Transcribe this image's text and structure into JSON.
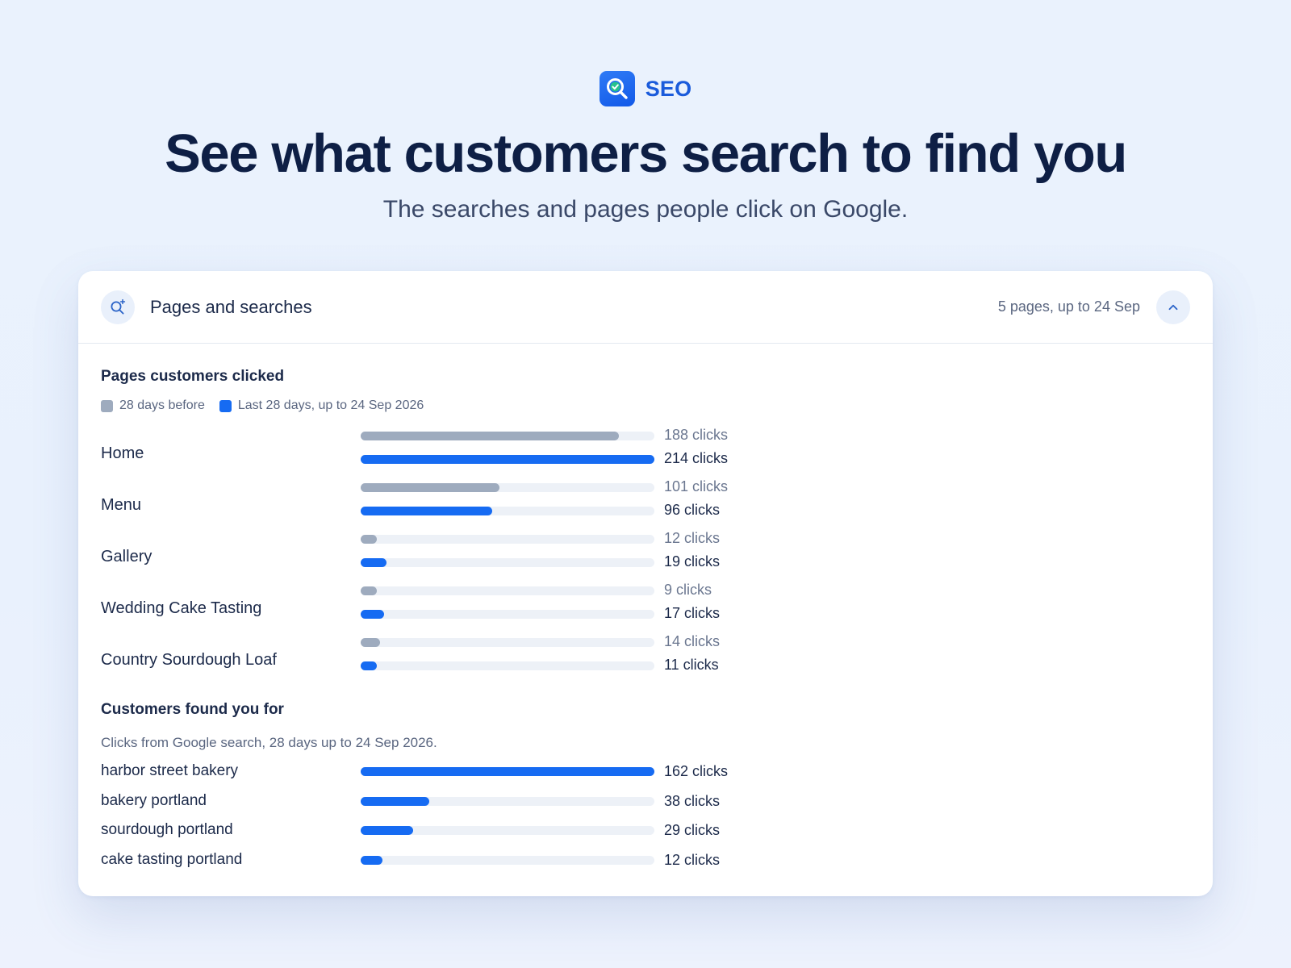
{
  "brand": {
    "name": "SEO"
  },
  "hero": {
    "title": "See what customers search to find you",
    "subtitle": "The searches and pages people click on Google."
  },
  "card": {
    "title": "Pages and searches",
    "meta": "5 pages, up to 24 Sep"
  },
  "pages_section": {
    "title": "Pages customers clicked",
    "legend": {
      "previous": "28 days before",
      "current": "Last 28 days, up to 24 Sep 2026"
    },
    "rows": [
      {
        "label": "Home",
        "previous": 188,
        "previous_text": "188 clicks",
        "current": 214,
        "current_text": "214 clicks"
      },
      {
        "label": "Menu",
        "previous": 101,
        "previous_text": "101 clicks",
        "current": 96,
        "current_text": "96 clicks"
      },
      {
        "label": "Gallery",
        "previous": 12,
        "previous_text": "12 clicks",
        "current": 19,
        "current_text": "19 clicks"
      },
      {
        "label": "Wedding Cake Tasting",
        "previous": 9,
        "previous_text": "9 clicks",
        "current": 17,
        "current_text": "17 clicks"
      },
      {
        "label": "Country Sourdough Loaf",
        "previous": 14,
        "previous_text": "14 clicks",
        "current": 11,
        "current_text": "11 clicks"
      }
    ],
    "max": 214
  },
  "searches_section": {
    "title": "Customers found you for",
    "note": "Clicks from Google search, 28 days up to 24 Sep 2026.",
    "rows": [
      {
        "label": "harbor street bakery",
        "value": 162,
        "value_text": "162 clicks"
      },
      {
        "label": "bakery portland",
        "value": 38,
        "value_text": "38 clicks"
      },
      {
        "label": "sourdough portland",
        "value": 29,
        "value_text": "29 clicks"
      },
      {
        "label": "cake tasting portland",
        "value": 12,
        "value_text": "12 clicks"
      }
    ],
    "max": 162
  },
  "colors": {
    "previous": "#9eabbe",
    "current": "#166bf2",
    "previous_text": "#6b7790",
    "current_text": "#1c2a4a"
  }
}
